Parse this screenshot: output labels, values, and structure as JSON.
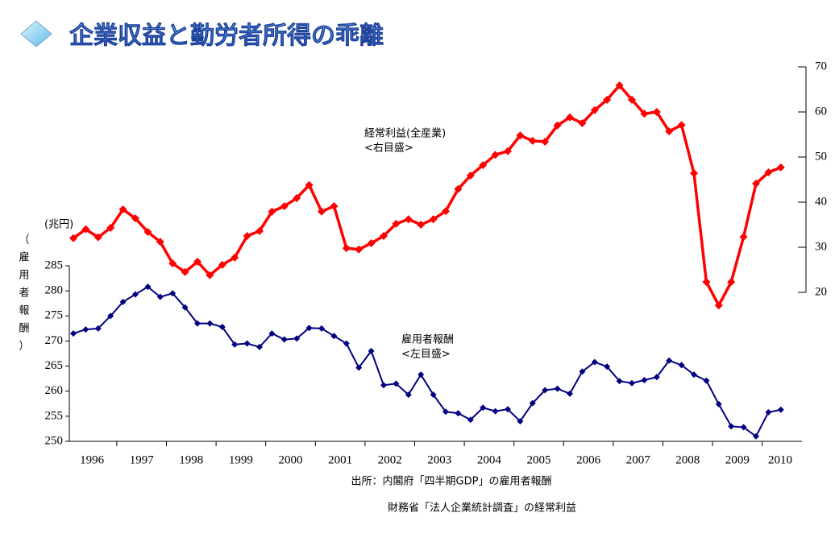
{
  "chart_data": {
    "type": "line",
    "title": "企業収益と勤労者所得の乖離",
    "y_label": "（雇用者報酬）",
    "y_unit": "(兆円)",
    "source": [
      "出所：内閣府「四半期GDP」の雇用者報酬",
      "財務省「法人企業統計調査」の経常利益"
    ],
    "annotations": [
      {
        "series": 0,
        "lines": [
          "経常利益(全産業)",
          "<右目盛>"
        ]
      },
      {
        "series": 1,
        "lines": [
          "雇用者報酬",
          "<左目盛>"
        ]
      }
    ],
    "categories": [
      "1996",
      null,
      null,
      null,
      "1997",
      null,
      null,
      null,
      "1998",
      null,
      null,
      null,
      "1999",
      null,
      null,
      null,
      "2000",
      null,
      null,
      null,
      "2001",
      null,
      null,
      null,
      "2002",
      null,
      null,
      null,
      "2003",
      null,
      null,
      null,
      "2004",
      null,
      null,
      null,
      "2005",
      null,
      null,
      null,
      "2006",
      null,
      null,
      null,
      "2007",
      null,
      null,
      null,
      "2008",
      null,
      null,
      null,
      "2009",
      null,
      null,
      null,
      "2010",
      null
    ],
    "ylim": [
      250,
      285
    ],
    "yticks": [
      250,
      255,
      260,
      265,
      270,
      275,
      280,
      285
    ],
    "y2lim": [
      20,
      70
    ],
    "y2ticks": [
      20,
      30,
      40,
      50,
      60,
      70
    ],
    "series": [
      {
        "name": "経常利益(全産業)",
        "color": "#ff0000",
        "axis": "y2",
        "values": [
          32,
          34,
          32.2,
          34.3,
          38.4,
          36.4,
          33.4,
          31.2,
          26.4,
          24.5,
          26.8,
          23.8,
          26.1,
          27.7,
          32.5,
          33.6,
          37.9,
          39.1,
          40.9,
          43.8,
          37.9,
          39.1,
          29.8,
          29.5,
          30.9,
          32.5,
          35.2,
          36.2,
          35,
          36.2,
          38,
          42.9,
          45.9,
          48.2,
          50.5,
          51.3,
          54.8,
          53.6,
          53.4,
          57,
          58.8,
          57.5,
          60.4,
          62.7,
          65.9,
          62.7,
          59.6,
          60,
          55.7,
          57.1,
          46.4,
          22.3,
          17.1,
          22.3,
          32.3,
          44.1,
          46.6,
          47.7
        ]
      },
      {
        "name": "雇用者報酬",
        "color": "#000080",
        "axis": "y",
        "values": [
          271.5,
          272.3,
          272.5,
          275,
          277.8,
          279.3,
          280.8,
          278.8,
          279.5,
          276.7,
          273.5,
          273.5,
          272.8,
          269.3,
          269.5,
          268.8,
          271.5,
          270.3,
          270.5,
          272.6,
          272.5,
          271,
          269.5,
          264.7,
          268,
          261.2,
          261.5,
          259.3,
          263.3,
          259.3,
          255.9,
          255.6,
          254.3,
          256.7,
          256,
          256.4,
          254,
          257.6,
          260.2,
          260.5,
          259.5,
          263.9,
          265.8,
          264.9,
          262,
          261.6,
          262.2,
          262.8,
          266.1,
          265.2,
          263.3,
          262.1,
          257.4,
          253,
          252.8,
          251,
          255.8,
          256.3
        ]
      }
    ]
  }
}
